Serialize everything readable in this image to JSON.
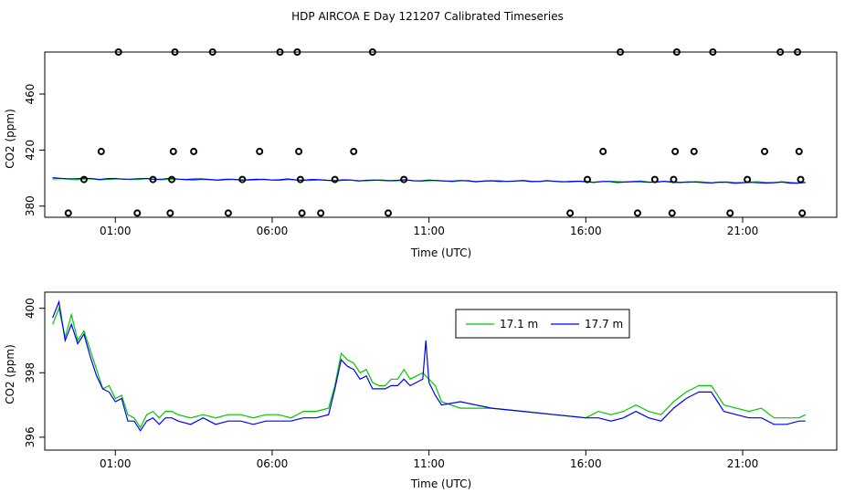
{
  "figure": {
    "title": "HDP AIRCOA E  Day 121207  Calibrated Timeseries"
  },
  "colors": {
    "series_17_1": "#00c800",
    "series_17_7": "#0000ff",
    "axis": "#000000",
    "background": "#ffffff"
  },
  "chart_data": [
    {
      "type": "scatter",
      "xlabel": "Time (UTC)",
      "ylabel": "CO2 (ppm)",
      "x_ticks": [
        "01:00",
        "06:00",
        "11:00",
        "16:00",
        "21:00"
      ],
      "y_ticks": [
        "380",
        "420",
        "460"
      ],
      "xlim": [
        -1.25,
        24
      ],
      "ylim": [
        372,
        490
      ],
      "points": [
        [
          -0.5,
          375
        ],
        [
          0.0,
          399
        ],
        [
          0.55,
          419
        ],
        [
          1.1,
          490
        ],
        [
          1.7,
          375
        ],
        [
          2.2,
          399
        ],
        [
          2.75,
          375
        ],
        [
          2.8,
          399
        ],
        [
          2.85,
          419
        ],
        [
          2.9,
          490
        ],
        [
          3.5,
          419
        ],
        [
          4.1,
          490
        ],
        [
          4.6,
          375
        ],
        [
          5.05,
          399
        ],
        [
          5.6,
          419
        ],
        [
          6.25,
          490
        ],
        [
          6.8,
          490
        ],
        [
          6.85,
          419
        ],
        [
          6.9,
          399
        ],
        [
          6.95,
          375
        ],
        [
          7.55,
          375
        ],
        [
          8.0,
          399
        ],
        [
          8.6,
          419
        ],
        [
          9.2,
          490
        ],
        [
          9.7,
          375
        ],
        [
          10.2,
          399
        ],
        [
          15.5,
          375
        ],
        [
          16.05,
          399
        ],
        [
          16.55,
          419
        ],
        [
          17.1,
          490
        ],
        [
          17.65,
          375
        ],
        [
          18.2,
          399
        ],
        [
          18.75,
          375
        ],
        [
          18.8,
          399
        ],
        [
          18.85,
          419
        ],
        [
          18.9,
          490
        ],
        [
          19.45,
          419
        ],
        [
          20.05,
          490
        ],
        [
          20.6,
          375
        ],
        [
          21.15,
          399
        ],
        [
          21.7,
          419
        ],
        [
          22.2,
          490
        ],
        [
          22.75,
          490
        ],
        [
          22.8,
          419
        ],
        [
          22.85,
          399
        ],
        [
          22.9,
          375
        ]
      ],
      "series": [
        {
          "name": "17.1 m",
          "smooth": true,
          "values": [
            [
              -1.0,
              399.4
            ],
            [
              23.0,
              396.8
            ]
          ]
        },
        {
          "name": "17.7 m",
          "smooth": true,
          "values": [
            [
              -1.0,
              399.8
            ],
            [
              23.0,
              396.5
            ]
          ]
        }
      ]
    },
    {
      "type": "line",
      "xlabel": "Time (UTC)",
      "ylabel": "CO2 (ppm)",
      "x_ticks": [
        "01:00",
        "06:00",
        "11:00",
        "16:00",
        "21:00"
      ],
      "y_ticks": [
        "396",
        "398",
        "400"
      ],
      "xlim": [
        -1.25,
        24
      ],
      "ylim": [
        395.6,
        400.5
      ],
      "legend": "top-center",
      "series": [
        {
          "name": "17.1 m",
          "values": [
            [
              -1.0,
              399.5
            ],
            [
              -0.8,
              400.0
            ],
            [
              -0.6,
              399.1
            ],
            [
              -0.4,
              399.8
            ],
            [
              -0.2,
              399.0
            ],
            [
              0.0,
              399.3
            ],
            [
              0.2,
              398.7
            ],
            [
              0.4,
              398.1
            ],
            [
              0.6,
              397.5
            ],
            [
              0.8,
              397.6
            ],
            [
              1.0,
              397.2
            ],
            [
              1.2,
              397.3
            ],
            [
              1.4,
              396.7
            ],
            [
              1.6,
              396.6
            ],
            [
              1.8,
              396.3
            ],
            [
              2.0,
              396.7
            ],
            [
              2.2,
              396.8
            ],
            [
              2.4,
              396.6
            ],
            [
              2.6,
              396.8
            ],
            [
              2.8,
              396.8
            ],
            [
              3.0,
              396.7
            ],
            [
              3.4,
              396.6
            ],
            [
              3.8,
              396.7
            ],
            [
              4.2,
              396.6
            ],
            [
              4.6,
              396.7
            ],
            [
              5.0,
              396.7
            ],
            [
              5.4,
              396.6
            ],
            [
              5.8,
              396.7
            ],
            [
              6.2,
              396.7
            ],
            [
              6.6,
              396.6
            ],
            [
              7.0,
              396.8
            ],
            [
              7.4,
              396.8
            ],
            [
              7.8,
              396.9
            ],
            [
              8.0,
              397.6
            ],
            [
              8.2,
              398.6
            ],
            [
              8.4,
              398.4
            ],
            [
              8.6,
              398.3
            ],
            [
              8.8,
              398.0
            ],
            [
              9.0,
              398.1
            ],
            [
              9.2,
              397.7
            ],
            [
              9.4,
              397.6
            ],
            [
              9.6,
              397.6
            ],
            [
              9.8,
              397.8
            ],
            [
              10.0,
              397.8
            ],
            [
              10.2,
              398.1
            ],
            [
              10.4,
              397.8
            ],
            [
              10.6,
              397.9
            ],
            [
              10.8,
              398.0
            ],
            [
              11.0,
              397.8
            ],
            [
              11.2,
              397.6
            ],
            [
              11.4,
              397.1
            ],
            [
              12.0,
              396.9
            ],
            [
              13.0,
              396.9
            ],
            [
              14.0,
              396.8
            ],
            [
              15.0,
              396.7
            ],
            [
              16.0,
              396.6
            ],
            [
              16.4,
              396.8
            ],
            [
              16.8,
              396.7
            ],
            [
              17.2,
              396.8
            ],
            [
              17.6,
              397.0
            ],
            [
              18.0,
              396.8
            ],
            [
              18.4,
              396.7
            ],
            [
              18.8,
              397.1
            ],
            [
              19.2,
              397.4
            ],
            [
              19.6,
              397.6
            ],
            [
              20.0,
              397.6
            ],
            [
              20.4,
              397.0
            ],
            [
              20.8,
              396.9
            ],
            [
              21.2,
              396.8
            ],
            [
              21.6,
              396.9
            ],
            [
              22.0,
              396.6
            ],
            [
              22.4,
              396.6
            ],
            [
              22.8,
              396.6
            ],
            [
              23.0,
              396.7
            ]
          ]
        },
        {
          "name": "17.7 m",
          "values": [
            [
              -1.0,
              399.7
            ],
            [
              -0.8,
              400.2
            ],
            [
              -0.6,
              399.0
            ],
            [
              -0.4,
              399.5
            ],
            [
              -0.2,
              398.9
            ],
            [
              0.0,
              399.2
            ],
            [
              0.2,
              398.5
            ],
            [
              0.4,
              397.9
            ],
            [
              0.6,
              397.5
            ],
            [
              0.8,
              397.4
            ],
            [
              1.0,
              397.1
            ],
            [
              1.2,
              397.2
            ],
            [
              1.4,
              396.5
            ],
            [
              1.6,
              396.5
            ],
            [
              1.8,
              396.2
            ],
            [
              2.0,
              396.5
            ],
            [
              2.2,
              396.6
            ],
            [
              2.4,
              396.4
            ],
            [
              2.6,
              396.6
            ],
            [
              2.8,
              396.6
            ],
            [
              3.0,
              396.5
            ],
            [
              3.4,
              396.4
            ],
            [
              3.8,
              396.6
            ],
            [
              4.2,
              396.4
            ],
            [
              4.6,
              396.5
            ],
            [
              5.0,
              396.5
            ],
            [
              5.4,
              396.4
            ],
            [
              5.8,
              396.5
            ],
            [
              6.2,
              396.5
            ],
            [
              6.6,
              396.5
            ],
            [
              7.0,
              396.6
            ],
            [
              7.4,
              396.6
            ],
            [
              7.8,
              396.7
            ],
            [
              8.0,
              397.5
            ],
            [
              8.2,
              398.4
            ],
            [
              8.4,
              398.2
            ],
            [
              8.6,
              398.1
            ],
            [
              8.8,
              397.8
            ],
            [
              9.0,
              397.9
            ],
            [
              9.2,
              397.5
            ],
            [
              9.4,
              397.5
            ],
            [
              9.6,
              397.5
            ],
            [
              9.8,
              397.6
            ],
            [
              10.0,
              397.6
            ],
            [
              10.2,
              397.8
            ],
            [
              10.4,
              397.6
            ],
            [
              10.6,
              397.7
            ],
            [
              10.8,
              397.8
            ],
            [
              10.9,
              399.0
            ],
            [
              11.0,
              397.7
            ],
            [
              11.2,
              397.3
            ],
            [
              11.4,
              397.0
            ],
            [
              12.0,
              397.1
            ],
            [
              13.0,
              396.9
            ],
            [
              14.0,
              396.8
            ],
            [
              15.0,
              396.7
            ],
            [
              16.0,
              396.6
            ],
            [
              16.4,
              396.6
            ],
            [
              16.8,
              396.5
            ],
            [
              17.2,
              396.6
            ],
            [
              17.6,
              396.8
            ],
            [
              18.0,
              396.6
            ],
            [
              18.4,
              396.5
            ],
            [
              18.8,
              396.9
            ],
            [
              19.2,
              397.2
            ],
            [
              19.6,
              397.4
            ],
            [
              20.0,
              397.4
            ],
            [
              20.4,
              396.8
            ],
            [
              20.8,
              396.7
            ],
            [
              21.2,
              396.6
            ],
            [
              21.6,
              396.6
            ],
            [
              22.0,
              396.4
            ],
            [
              22.4,
              396.4
            ],
            [
              22.8,
              396.5
            ],
            [
              23.0,
              396.5
            ]
          ]
        }
      ]
    }
  ]
}
